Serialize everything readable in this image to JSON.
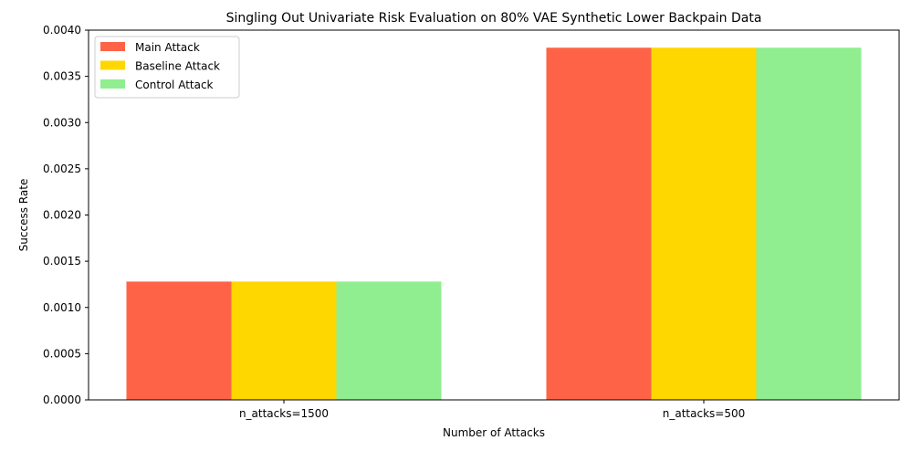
{
  "chart_data": {
    "type": "bar",
    "title": "Singling Out Univariate Risk Evaluation on 80% VAE Synthetic Lower Backpain Data",
    "xlabel": "Number of Attacks",
    "ylabel": "Success Rate",
    "categories": [
      "n_attacks=1500",
      "n_attacks=500"
    ],
    "series": [
      {
        "name": "Main Attack",
        "color": "#ff6347",
        "values": [
          0.00128,
          0.00381
        ]
      },
      {
        "name": "Baseline Attack",
        "color": "#ffd700",
        "values": [
          0.00128,
          0.00381
        ]
      },
      {
        "name": "Control Attack",
        "color": "#90ee90",
        "values": [
          0.00128,
          0.00381
        ]
      }
    ],
    "ylim": [
      0,
      0.004
    ],
    "yticks": [
      "0.0000",
      "0.0005",
      "0.0010",
      "0.0015",
      "0.0020",
      "0.0025",
      "0.0030",
      "0.0035",
      "0.0040"
    ],
    "grid": false,
    "legend_position": "top-left"
  }
}
